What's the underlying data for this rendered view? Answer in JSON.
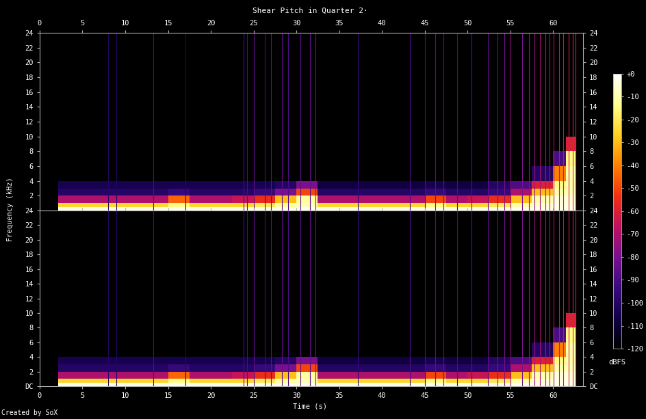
{
  "title": "Shear Pitch in Quarter 2·",
  "xlabel": "Time (s)",
  "ylabel": "Frequency (kHz)",
  "note": "Created by SoX",
  "colorbar": {
    "label": "dBFS",
    "range": [
      -120,
      0
    ],
    "ticks": [
      {
        "value": 0,
        "label": "+0"
      },
      -10,
      -20,
      -30,
      -40,
      -50,
      -60,
      -70,
      -80,
      -90,
      -100,
      -110,
      -120
    ]
  },
  "chart_data": [
    {
      "type": "heatmap",
      "xlim": [
        0,
        63.5
      ],
      "xticks": [
        0,
        5,
        10,
        15,
        20,
        25,
        30,
        35,
        40,
        45,
        50,
        55,
        60
      ],
      "ylim": [
        0,
        24
      ],
      "yticks": [
        2,
        4,
        6,
        8,
        10,
        12,
        14,
        16,
        18,
        20,
        22,
        24
      ],
      "time_edges": [
        0,
        2.2,
        5,
        7.5,
        10,
        12.5,
        15,
        17.5,
        20,
        22.5,
        25,
        27.5,
        30,
        32.5,
        35,
        37.5,
        40,
        42.5,
        45,
        47.5,
        50,
        52.5,
        55,
        57.5,
        60,
        61.5,
        62.7,
        63.5
      ],
      "freq_edges": [
        0,
        0.5,
        1,
        2,
        3,
        4,
        6,
        8,
        10,
        12,
        16,
        20,
        24
      ],
      "cells": [
        [
          -130,
          -3,
          -3,
          -3,
          -3,
          -3,
          -3,
          -3,
          -3,
          -3,
          -3,
          -3,
          -3,
          -3,
          -3,
          -3,
          -3,
          -3,
          -3,
          -3,
          -3,
          -3,
          -3,
          -3,
          -3,
          -3,
          -130
        ],
        [
          -130,
          -25,
          -25,
          -25,
          -25,
          -25,
          -15,
          -25,
          -25,
          -25,
          -20,
          -12,
          -8,
          -25,
          -25,
          -25,
          -25,
          -25,
          -15,
          -25,
          -25,
          -20,
          -10,
          -5,
          -3,
          -3,
          -130
        ],
        [
          -130,
          -70,
          -70,
          -70,
          -70,
          -70,
          -45,
          -70,
          -70,
          -65,
          -55,
          -30,
          -12,
          -70,
          -70,
          -70,
          -70,
          -70,
          -50,
          -70,
          -65,
          -55,
          -30,
          -10,
          -5,
          -5,
          -130
        ],
        [
          -130,
          -100,
          -100,
          -100,
          -100,
          -100,
          -95,
          -100,
          -100,
          -100,
          -95,
          -80,
          -50,
          -100,
          -100,
          -100,
          -100,
          -100,
          -95,
          -100,
          -100,
          -95,
          -70,
          -30,
          -10,
          -8,
          -130
        ],
        [
          -130,
          -105,
          -105,
          -105,
          -105,
          -105,
          -105,
          -105,
          -105,
          -105,
          -105,
          -100,
          -80,
          -108,
          -108,
          -108,
          -108,
          -108,
          -105,
          -108,
          -108,
          -100,
          -90,
          -60,
          -15,
          -10,
          -130
        ],
        [
          -130,
          -125,
          -125,
          -125,
          -125,
          -125,
          -125,
          -125,
          -125,
          -125,
          -125,
          -125,
          -125,
          -125,
          -125,
          -125,
          -125,
          -125,
          -125,
          -125,
          -125,
          -125,
          -125,
          -100,
          -40,
          -10,
          -130
        ],
        [
          -130,
          -125,
          -125,
          -125,
          -125,
          -125,
          -125,
          -125,
          -125,
          -125,
          -125,
          -125,
          -125,
          -125,
          -125,
          -125,
          -125,
          -125,
          -125,
          -125,
          -125,
          -125,
          -125,
          -125,
          -90,
          -15,
          -130
        ],
        [
          -130,
          -125,
          -125,
          -125,
          -125,
          -125,
          -125,
          -125,
          -125,
          -125,
          -125,
          -125,
          -125,
          -125,
          -125,
          -125,
          -125,
          -125,
          -125,
          -125,
          -125,
          -125,
          -125,
          -125,
          -125,
          -60,
          -130
        ],
        [
          -130,
          -125,
          -125,
          -125,
          -125,
          -125,
          -125,
          -125,
          -125,
          -125,
          -125,
          -125,
          -125,
          -125,
          -125,
          -125,
          -125,
          -125,
          -125,
          -125,
          -125,
          -125,
          -125,
          -125,
          -125,
          -125,
          -130
        ],
        [
          -130,
          -125,
          -125,
          -125,
          -125,
          -125,
          -125,
          -125,
          -125,
          -125,
          -125,
          -125,
          -125,
          -125,
          -125,
          -125,
          -125,
          -125,
          -125,
          -125,
          -125,
          -125,
          -125,
          -125,
          -125,
          -125,
          -130
        ],
        [
          -130,
          -125,
          -125,
          -125,
          -125,
          -125,
          -125,
          -125,
          -125,
          -125,
          -125,
          -125,
          -125,
          -125,
          -125,
          -125,
          -125,
          -125,
          -125,
          -125,
          -125,
          -125,
          -125,
          -125,
          -125,
          -125,
          -130
        ],
        [
          -130,
          -125,
          -125,
          -125,
          -125,
          -125,
          -125,
          -125,
          -125,
          -125,
          -125,
          -125,
          -125,
          -125,
          -125,
          -125,
          -125,
          -125,
          -125,
          -125,
          -125,
          -125,
          -125,
          -125,
          -125,
          -125,
          -130
        ]
      ],
      "transients": [
        {
          "time": 8.0,
          "level": -100
        },
        {
          "time": 9.0,
          "level": -100
        },
        {
          "time": 13.3,
          "level": -90
        },
        {
          "time": 17.0,
          "level": -100
        },
        {
          "time": 23.8,
          "level": -90
        },
        {
          "time": 24.2,
          "level": -90
        },
        {
          "time": 25.0,
          "level": -85
        },
        {
          "time": 26.3,
          "level": -90
        },
        {
          "time": 27.0,
          "level": -85
        },
        {
          "time": 28.3,
          "level": -85
        },
        {
          "time": 29.0,
          "level": -90
        },
        {
          "time": 30.5,
          "level": -85
        },
        {
          "time": 31.6,
          "level": -85
        },
        {
          "time": 32.2,
          "level": -80
        },
        {
          "time": 37.2,
          "level": -95
        },
        {
          "time": 43.3,
          "level": -90
        },
        {
          "time": 45.0,
          "level": -90
        },
        {
          "time": 46.2,
          "level": -85
        },
        {
          "time": 47.2,
          "level": -85
        },
        {
          "time": 48.8,
          "level": -90
        },
        {
          "time": 50.5,
          "level": -85
        },
        {
          "time": 52.4,
          "level": -85
        },
        {
          "time": 53.5,
          "level": -80
        },
        {
          "time": 54.3,
          "level": -80
        },
        {
          "time": 55.0,
          "level": -75
        },
        {
          "time": 56.4,
          "level": -80
        },
        {
          "time": 57.2,
          "level": -75
        },
        {
          "time": 57.8,
          "level": -75
        },
        {
          "time": 58.5,
          "level": -70
        },
        {
          "time": 59.1,
          "level": -70
        },
        {
          "time": 59.6,
          "level": -70
        },
        {
          "time": 60.1,
          "level": -70
        },
        {
          "time": 60.7,
          "level": -65
        },
        {
          "time": 61.2,
          "level": -65
        },
        {
          "time": 61.8,
          "level": -60
        },
        {
          "time": 62.3,
          "level": -60
        },
        {
          "time": 62.6,
          "level": -60
        }
      ]
    },
    {
      "type": "heatmap",
      "xlim": [
        0,
        63.5
      ],
      "xticks": [
        0,
        5,
        10,
        15,
        20,
        25,
        30,
        35,
        40,
        45,
        50,
        55,
        60
      ],
      "ylim": [
        0,
        24
      ],
      "yticks": [
        {
          "value": 0,
          "label": "DC"
        },
        2,
        4,
        6,
        8,
        10,
        12,
        14,
        16,
        18,
        20,
        22,
        24
      ],
      "time_edges": [
        0,
        2.2,
        5,
        7.5,
        10,
        12.5,
        15,
        17.5,
        20,
        22.5,
        25,
        27.5,
        30,
        32.5,
        35,
        37.5,
        40,
        42.5,
        45,
        47.5,
        50,
        52.5,
        55,
        57.5,
        60,
        61.5,
        62.7,
        63.5
      ],
      "freq_edges": [
        0,
        0.5,
        1,
        2,
        3,
        4,
        6,
        8,
        10,
        12,
        16,
        20,
        24
      ],
      "cells": [
        [
          -130,
          -3,
          -3,
          -3,
          -3,
          -3,
          -3,
          -3,
          -3,
          -3,
          -3,
          -3,
          -3,
          -3,
          -3,
          -3,
          -3,
          -3,
          -3,
          -3,
          -3,
          -3,
          -3,
          -3,
          -3,
          -3,
          -130
        ],
        [
          -130,
          -25,
          -25,
          -25,
          -25,
          -25,
          -15,
          -25,
          -25,
          -25,
          -20,
          -12,
          -8,
          -25,
          -25,
          -25,
          -25,
          -25,
          -15,
          -25,
          -25,
          -20,
          -10,
          -5,
          -3,
          -3,
          -130
        ],
        [
          -130,
          -70,
          -70,
          -70,
          -70,
          -70,
          -45,
          -70,
          -70,
          -65,
          -55,
          -30,
          -12,
          -70,
          -70,
          -70,
          -70,
          -70,
          -50,
          -70,
          -65,
          -55,
          -30,
          -10,
          -5,
          -5,
          -130
        ],
        [
          -130,
          -100,
          -100,
          -100,
          -100,
          -100,
          -95,
          -100,
          -100,
          -100,
          -95,
          -80,
          -50,
          -100,
          -100,
          -100,
          -100,
          -100,
          -95,
          -100,
          -100,
          -95,
          -70,
          -30,
          -10,
          -8,
          -130
        ],
        [
          -130,
          -105,
          -105,
          -105,
          -105,
          -105,
          -105,
          -105,
          -105,
          -105,
          -105,
          -100,
          -80,
          -108,
          -108,
          -108,
          -108,
          -108,
          -105,
          -108,
          -108,
          -100,
          -90,
          -60,
          -15,
          -10,
          -130
        ],
        [
          -130,
          -125,
          -125,
          -125,
          -125,
          -125,
          -125,
          -125,
          -125,
          -125,
          -125,
          -125,
          -125,
          -125,
          -125,
          -125,
          -125,
          -125,
          -125,
          -125,
          -125,
          -125,
          -125,
          -100,
          -40,
          -10,
          -130
        ],
        [
          -130,
          -125,
          -125,
          -125,
          -125,
          -125,
          -125,
          -125,
          -125,
          -125,
          -125,
          -125,
          -125,
          -125,
          -125,
          -125,
          -125,
          -125,
          -125,
          -125,
          -125,
          -125,
          -125,
          -125,
          -90,
          -15,
          -130
        ],
        [
          -130,
          -125,
          -125,
          -125,
          -125,
          -125,
          -125,
          -125,
          -125,
          -125,
          -125,
          -125,
          -125,
          -125,
          -125,
          -125,
          -125,
          -125,
          -125,
          -125,
          -125,
          -125,
          -125,
          -125,
          -125,
          -60,
          -130
        ],
        [
          -130,
          -125,
          -125,
          -125,
          -125,
          -125,
          -125,
          -125,
          -125,
          -125,
          -125,
          -125,
          -125,
          -125,
          -125,
          -125,
          -125,
          -125,
          -125,
          -125,
          -125,
          -125,
          -125,
          -125,
          -125,
          -125,
          -130
        ],
        [
          -130,
          -125,
          -125,
          -125,
          -125,
          -125,
          -125,
          -125,
          -125,
          -125,
          -125,
          -125,
          -125,
          -125,
          -125,
          -125,
          -125,
          -125,
          -125,
          -125,
          -125,
          -125,
          -125,
          -125,
          -125,
          -125,
          -130
        ],
        [
          -130,
          -125,
          -125,
          -125,
          -125,
          -125,
          -125,
          -125,
          -125,
          -125,
          -125,
          -125,
          -125,
          -125,
          -125,
          -125,
          -125,
          -125,
          -125,
          -125,
          -125,
          -125,
          -125,
          -125,
          -125,
          -125,
          -130
        ],
        [
          -130,
          -125,
          -125,
          -125,
          -125,
          -125,
          -125,
          -125,
          -125,
          -125,
          -125,
          -125,
          -125,
          -125,
          -125,
          -125,
          -125,
          -125,
          -125,
          -125,
          -125,
          -125,
          -125,
          -125,
          -125,
          -125,
          -130
        ]
      ],
      "transients": [
        {
          "time": 8.0,
          "level": -100
        },
        {
          "time": 9.0,
          "level": -100
        },
        {
          "time": 13.3,
          "level": -90
        },
        {
          "time": 17.0,
          "level": -100
        },
        {
          "time": 23.8,
          "level": -90
        },
        {
          "time": 24.2,
          "level": -90
        },
        {
          "time": 25.0,
          "level": -85
        },
        {
          "time": 26.3,
          "level": -90
        },
        {
          "time": 27.0,
          "level": -85
        },
        {
          "time": 28.3,
          "level": -85
        },
        {
          "time": 29.0,
          "level": -90
        },
        {
          "time": 30.5,
          "level": -85
        },
        {
          "time": 31.6,
          "level": -85
        },
        {
          "time": 32.2,
          "level": -80
        },
        {
          "time": 37.2,
          "level": -95
        },
        {
          "time": 43.3,
          "level": -90
        },
        {
          "time": 45.0,
          "level": -90
        },
        {
          "time": 46.2,
          "level": -85
        },
        {
          "time": 47.2,
          "level": -85
        },
        {
          "time": 48.8,
          "level": -90
        },
        {
          "time": 50.5,
          "level": -85
        },
        {
          "time": 52.4,
          "level": -85
        },
        {
          "time": 53.5,
          "level": -80
        },
        {
          "time": 54.3,
          "level": -80
        },
        {
          "time": 55.0,
          "level": -75
        },
        {
          "time": 56.4,
          "level": -80
        },
        {
          "time": 57.2,
          "level": -75
        },
        {
          "time": 57.8,
          "level": -75
        },
        {
          "time": 58.5,
          "level": -70
        },
        {
          "time": 59.1,
          "level": -70
        },
        {
          "time": 59.6,
          "level": -70
        },
        {
          "time": 60.1,
          "level": -70
        },
        {
          "time": 60.7,
          "level": -65
        },
        {
          "time": 61.2,
          "level": -65
        },
        {
          "time": 61.8,
          "level": -60
        },
        {
          "time": 62.3,
          "level": -60
        },
        {
          "time": 62.6,
          "level": -60
        }
      ]
    }
  ]
}
